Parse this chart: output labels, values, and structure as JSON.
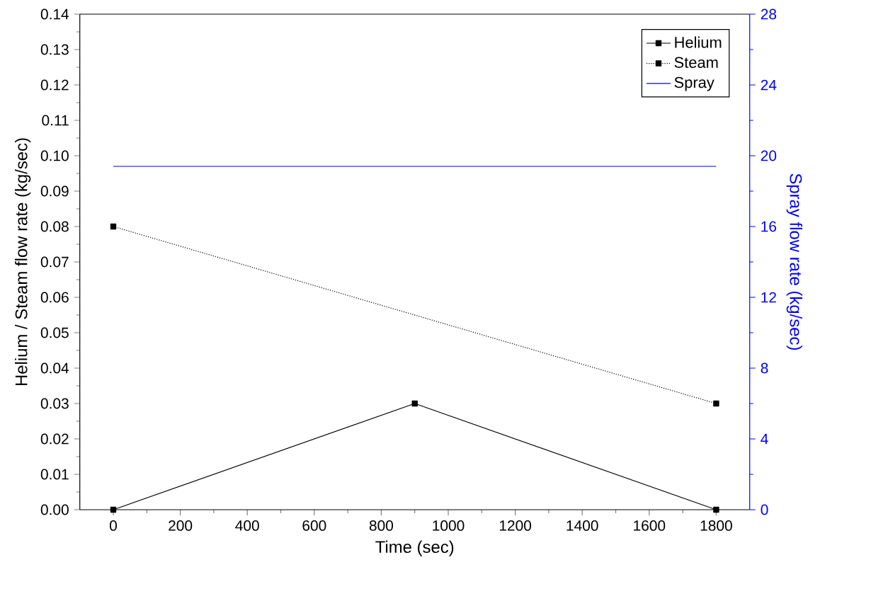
{
  "chart_data": {
    "type": "line",
    "xlabel": "Time (sec)",
    "ylabel": "Helium / Steam flow rate (kg/sec)",
    "y2label": "Spray flow rate (kg/sec)",
    "xlim": [
      -100,
      1900
    ],
    "xticks": [
      0,
      200,
      400,
      600,
      800,
      1000,
      1200,
      1400,
      1600,
      1800
    ],
    "ylim": [
      0,
      0.14
    ],
    "yticks": [
      {
        "value": 0,
        "label": "0.00"
      },
      {
        "value": 0.01,
        "label": "0.01"
      },
      {
        "value": 0.02,
        "label": "0.02"
      },
      {
        "value": 0.03,
        "label": "0.03"
      },
      {
        "value": 0.04,
        "label": "0.04"
      },
      {
        "value": 0.05,
        "label": "0.05"
      },
      {
        "value": 0.06,
        "label": "0.06"
      },
      {
        "value": 0.07,
        "label": "0.07"
      },
      {
        "value": 0.08,
        "label": "0.08"
      },
      {
        "value": 0.09,
        "label": "0.09"
      },
      {
        "value": 0.1,
        "label": "0.10"
      },
      {
        "value": 0.11,
        "label": "0.11"
      },
      {
        "value": 0.12,
        "label": "0.12"
      },
      {
        "value": 0.13,
        "label": "0.13"
      },
      {
        "value": 0.14,
        "label": "0.14"
      }
    ],
    "y2lim": [
      0,
      28
    ],
    "y2ticks": [
      0,
      4,
      8,
      12,
      16,
      20,
      24,
      28
    ],
    "legend": "top right",
    "series": [
      {
        "name": "Helium",
        "color": "#000000",
        "x": [
          0,
          900,
          1800
        ],
        "values": [
          0,
          0.03,
          0
        ],
        "marker": "square",
        "line_style": "solid"
      },
      {
        "name": "Steam",
        "color": "#000000",
        "x": [
          0,
          1800
        ],
        "values": [
          0.08,
          0.03
        ],
        "marker": "square",
        "line_style": "dotted"
      },
      {
        "name": "Spray",
        "color": "#0000ff",
        "x": [
          0,
          1800
        ],
        "values": [
          19.4,
          19.4
        ],
        "axis": "y2",
        "marker": "none",
        "line_style": "solid"
      }
    ]
  }
}
